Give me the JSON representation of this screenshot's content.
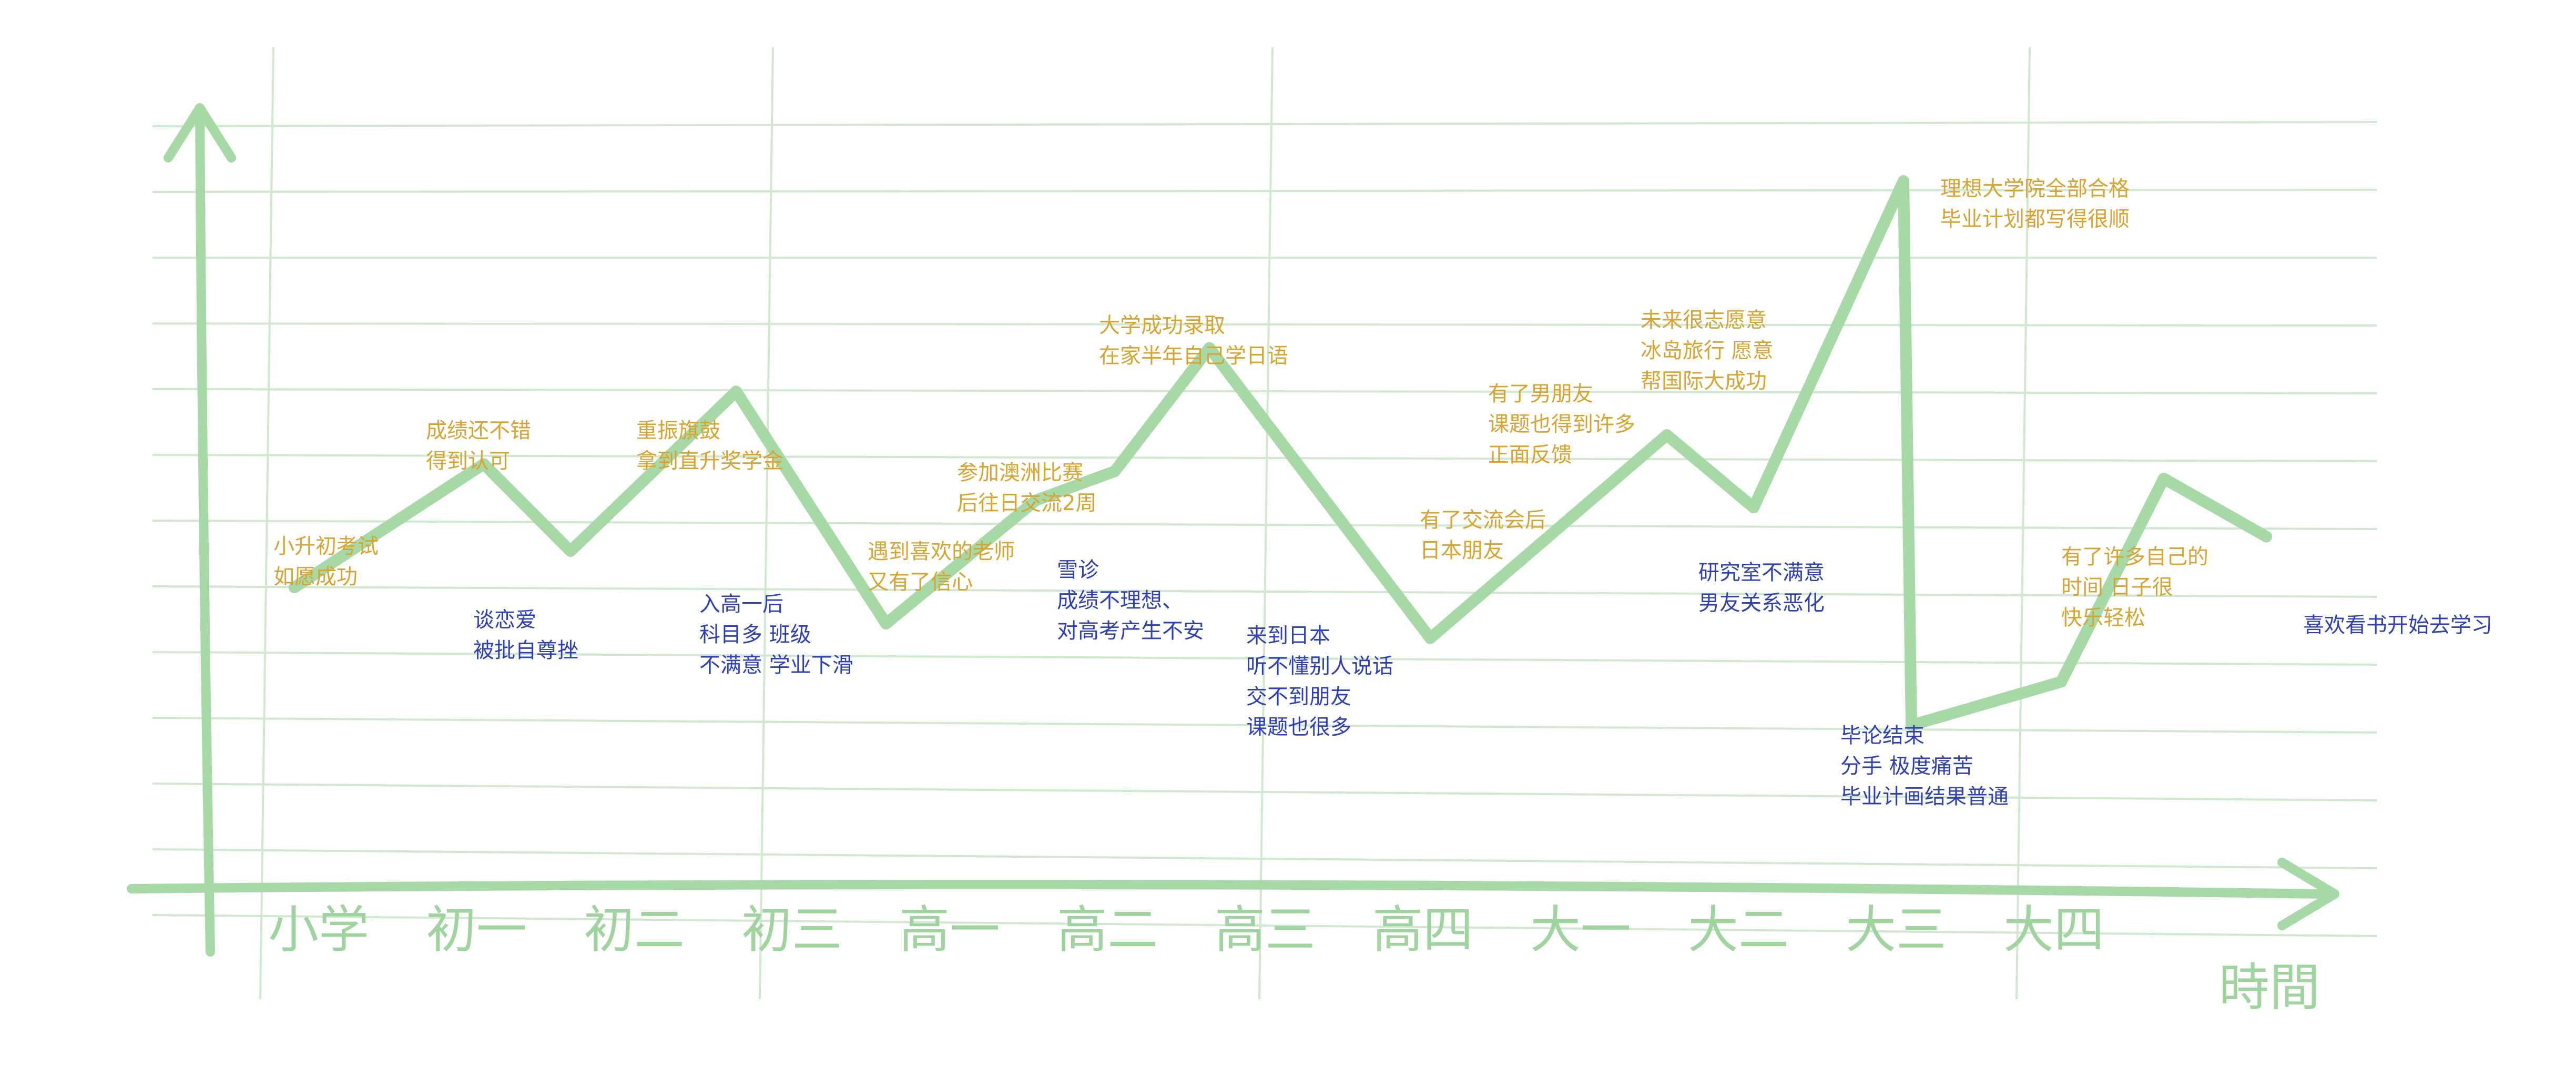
{
  "chart_data": {
    "type": "line",
    "title": "",
    "xlabel": "時間",
    "ylabel": "",
    "grid": true,
    "ylim": [
      0,
      100
    ],
    "categories": [
      "小学",
      "初一",
      "初二",
      "初三",
      "高一",
      "高二",
      "高三",
      "高四",
      "大一",
      "大二",
      "大三",
      "大四"
    ],
    "points": [
      {
        "x": 0.0,
        "y": 35
      },
      {
        "x": 1.2,
        "y": 52
      },
      {
        "x": 1.75,
        "y": 40
      },
      {
        "x": 2.8,
        "y": 62
      },
      {
        "x": 3.75,
        "y": 30
      },
      {
        "x": 4.7,
        "y": 47
      },
      {
        "x": 5.2,
        "y": 51
      },
      {
        "x": 5.8,
        "y": 68
      },
      {
        "x": 7.2,
        "y": 28
      },
      {
        "x": 8.7,
        "y": 56
      },
      {
        "x": 9.25,
        "y": 46
      },
      {
        "x": 10.2,
        "y": 91
      },
      {
        "x": 10.25,
        "y": 16
      },
      {
        "x": 11.2,
        "y": 22
      },
      {
        "x": 11.85,
        "y": 50
      },
      {
        "x": 12.5,
        "y": 42
      }
    ],
    "annotations": [
      {
        "kind": "up",
        "lines": [
          "小升初考试",
          "如愿成功"
        ]
      },
      {
        "kind": "up",
        "lines": [
          "成绩还不错",
          "得到认可"
        ]
      },
      {
        "kind": "down",
        "lines": [
          "谈恋爱",
          "被批自尊挫"
        ]
      },
      {
        "kind": "up",
        "lines": [
          "重振旗鼓",
          "拿到直升奖学金"
        ]
      },
      {
        "kind": "down",
        "lines": [
          "入高一后",
          "科目多 班级",
          "不满意 学业下滑"
        ]
      },
      {
        "kind": "up",
        "lines": [
          "遇到喜欢的老师",
          "又有了信心"
        ]
      },
      {
        "kind": "up",
        "lines": [
          "参加澳洲比赛",
          "后往日交流2周"
        ]
      },
      {
        "kind": "down",
        "lines": [
          "雪诊",
          "成绩不理想、",
          "对高考产生不安"
        ]
      },
      {
        "kind": "up",
        "lines": [
          "大学成功录取",
          "在家半年自己学日语"
        ]
      },
      {
        "kind": "down",
        "lines": [
          "来到日本",
          "听不懂别人说话",
          "交不到朋友",
          "课题也很多"
        ]
      },
      {
        "kind": "up",
        "lines": [
          "有了交流会后",
          "日本朋友"
        ]
      },
      {
        "kind": "up",
        "lines": [
          "有了男朋友",
          "课题也得到许多",
          "正面反馈"
        ]
      },
      {
        "kind": "up",
        "lines": [
          "未来很志愿意",
          "冰岛旅行 愿意",
          "帮国际大成功"
        ]
      },
      {
        "kind": "down",
        "lines": [
          "研究室不满意",
          "男友关系恶化"
        ]
      },
      {
        "kind": "up",
        "lines": [
          "理想大学院全部合格",
          "毕业计划都写得很顺"
        ]
      },
      {
        "kind": "down",
        "lines": [
          "毕论结束",
          "分手 极度痛苦",
          "毕业计画结果普通"
        ]
      },
      {
        "kind": "up",
        "lines": [
          "有了许多自己的",
          "时间 日子很",
          "快乐轻松"
        ]
      },
      {
        "kind": "down",
        "lines": [
          "喜欢看书开始去学习"
        ]
      }
    ]
  }
}
